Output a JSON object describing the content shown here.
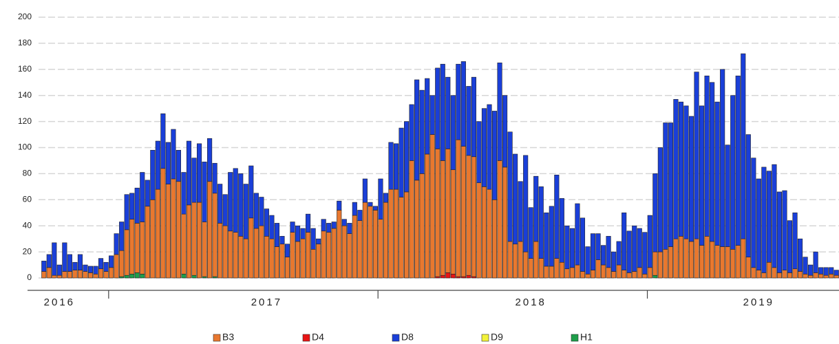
{
  "chart_data": {
    "type": "bar",
    "stacked": true,
    "grid": true,
    "legend": "bottom",
    "ylim": [
      0,
      200
    ],
    "yticks": [
      0,
      20,
      40,
      60,
      80,
      100,
      120,
      140,
      160,
      180,
      200
    ],
    "categories": [
      null,
      null,
      null,
      "2016",
      null,
      null,
      null,
      null,
      null,
      null,
      null,
      null,
      null,
      null,
      null,
      null,
      null,
      null,
      null,
      null,
      null,
      null,
      null,
      null,
      null,
      null,
      null,
      null,
      null,
      null,
      null,
      null,
      null,
      null,
      null,
      null,
      null,
      null,
      null,
      null,
      null,
      null,
      null,
      "2017",
      null,
      null,
      null,
      null,
      null,
      null,
      null,
      null,
      null,
      null,
      null,
      null,
      null,
      null,
      null,
      null,
      null,
      null,
      null,
      null,
      null,
      null,
      null,
      null,
      null,
      null,
      null,
      null,
      null,
      null,
      null,
      null,
      null,
      null,
      null,
      null,
      null,
      null,
      null,
      null,
      null,
      null,
      null,
      null,
      null,
      null,
      null,
      null,
      null,
      null,
      "2018",
      null,
      null,
      null,
      null,
      null,
      null,
      null,
      null,
      null,
      null,
      null,
      null,
      null,
      null,
      null,
      null,
      null,
      null,
      null,
      null,
      null,
      null,
      null,
      null,
      null,
      null,
      null,
      null,
      null,
      null,
      null,
      null,
      null,
      null,
      null,
      null,
      null,
      null,
      null,
      null,
      null,
      null,
      null,
      "2019",
      null,
      null,
      null,
      null,
      null,
      null,
      null,
      null,
      null,
      null,
      null,
      null,
      null,
      null,
      null
    ],
    "series": [
      {
        "name": "B3",
        "color": "#e8782f",
        "values": [
          5,
          8,
          2,
          2,
          5,
          5,
          6,
          6,
          5,
          4,
          3,
          7,
          5,
          8,
          18,
          20,
          35,
          42,
          38,
          40,
          55,
          60,
          68,
          84,
          72,
          76,
          74,
          46,
          56,
          56,
          58,
          42,
          74,
          64,
          42,
          40,
          36,
          35,
          32,
          30,
          46,
          38,
          40,
          32,
          30,
          24,
          26,
          16,
          35,
          28,
          30,
          35,
          22,
          26,
          36,
          35,
          38,
          52,
          40,
          34,
          48,
          44,
          58,
          55,
          52,
          45,
          58,
          68,
          68,
          62,
          66,
          90,
          75,
          80,
          95,
          110,
          98,
          88,
          95,
          80,
          105,
          100,
          92,
          92,
          73,
          70,
          68,
          60,
          90,
          85,
          28,
          26,
          28,
          20,
          15,
          28,
          15,
          9,
          9,
          15,
          12,
          7,
          8,
          10,
          5,
          3,
          6,
          14,
          10,
          8,
          5,
          10,
          6,
          4,
          5,
          8,
          3,
          8,
          18,
          20,
          22,
          24,
          30,
          32,
          30,
          28,
          30,
          25,
          32,
          28,
          25,
          24,
          24,
          22,
          25,
          30,
          16,
          8,
          6,
          4,
          12,
          8,
          4,
          6,
          4,
          7,
          5,
          3,
          2,
          4,
          3,
          2,
          3,
          2
        ]
      },
      {
        "name": "D4",
        "color": "#e81414",
        "values": [
          0,
          0,
          0,
          0,
          0,
          0,
          0,
          0,
          0,
          0,
          0,
          0,
          0,
          0,
          0,
          0,
          0,
          0,
          0,
          0,
          0,
          0,
          0,
          0,
          0,
          0,
          0,
          0,
          0,
          0,
          0,
          0,
          0,
          0,
          0,
          0,
          0,
          0,
          0,
          0,
          0,
          0,
          0,
          0,
          0,
          0,
          0,
          0,
          0,
          0,
          0,
          0,
          0,
          0,
          0,
          0,
          0,
          0,
          0,
          0,
          0,
          0,
          0,
          0,
          0,
          0,
          0,
          0,
          0,
          0,
          0,
          0,
          0,
          0,
          0,
          0,
          1,
          2,
          4,
          3,
          1,
          1,
          2,
          1,
          0,
          0,
          0,
          0,
          0,
          0,
          0,
          0,
          0,
          0,
          0,
          0,
          0,
          0,
          0,
          0,
          0,
          0,
          0,
          0,
          0,
          0,
          0,
          0,
          0,
          0,
          0,
          0,
          0,
          0,
          0,
          0,
          0,
          0,
          0,
          0,
          0,
          0,
          0,
          0,
          0,
          0,
          0,
          0,
          0,
          0,
          0,
          0,
          0,
          0,
          0,
          0,
          0,
          0,
          0,
          0,
          0,
          0,
          0,
          0,
          0,
          0,
          0,
          0,
          0,
          0,
          0,
          0,
          0,
          0
        ]
      },
      {
        "name": "D8",
        "color": "#1a3fd8",
        "values": [
          8,
          10,
          25,
          8,
          22,
          13,
          6,
          12,
          5,
          5,
          6,
          8,
          7,
          9,
          16,
          22,
          27,
          20,
          27,
          38,
          20,
          38,
          37,
          42,
          32,
          38,
          24,
          32,
          49,
          34,
          45,
          46,
          33,
          23,
          30,
          24,
          45,
          49,
          48,
          42,
          40,
          27,
          22,
          21,
          18,
          18,
          6,
          10,
          8,
          12,
          8,
          14,
          16,
          4,
          9,
          7,
          5,
          7,
          5,
          8,
          10,
          8,
          18,
          3,
          3,
          31,
          7,
          36,
          35,
          53,
          54,
          43,
          77,
          64,
          58,
          30,
          62,
          74,
          55,
          57,
          58,
          65,
          53,
          61,
          47,
          60,
          65,
          68,
          75,
          55,
          84,
          69,
          46,
          74,
          39,
          50,
          55,
          41,
          46,
          64,
          49,
          33,
          30,
          47,
          41,
          21,
          28,
          20,
          15,
          24,
          15,
          18,
          44,
          32,
          35,
          30,
          32,
          40,
          60,
          80,
          97,
          95,
          107,
          103,
          102,
          96,
          128,
          107,
          123,
          122,
          110,
          136,
          78,
          118,
          130,
          142,
          94,
          84,
          70,
          81,
          70,
          79,
          62,
          61,
          40,
          43,
          25,
          13,
          8,
          16,
          5,
          6,
          5,
          4
        ]
      },
      {
        "name": "D9",
        "color": "#f2f23a",
        "values": [
          0,
          0,
          0,
          0,
          0,
          0,
          0,
          0,
          0,
          0,
          0,
          0,
          0,
          0,
          0,
          0,
          0,
          0,
          0,
          0,
          0,
          0,
          0,
          0,
          0,
          0,
          0,
          0,
          0,
          0,
          0,
          0,
          0,
          0,
          0,
          0,
          0,
          0,
          0,
          0,
          0,
          0,
          0,
          0,
          0,
          0,
          0,
          0,
          0,
          0,
          0,
          0,
          0,
          0,
          0,
          0,
          0,
          0,
          0,
          0,
          0,
          0,
          0,
          0,
          0,
          0,
          0,
          0,
          0,
          0,
          0,
          0,
          0,
          0,
          0,
          0,
          0,
          0,
          0,
          0,
          0,
          0,
          0,
          0,
          0,
          0,
          0,
          0,
          0,
          0,
          0,
          0,
          0,
          0,
          0,
          0,
          0,
          0,
          0,
          0,
          0,
          0,
          0,
          0,
          0,
          0,
          0,
          0,
          0,
          0,
          0,
          0,
          0,
          0,
          0,
          0,
          0,
          0,
          0,
          0,
          0,
          0,
          0,
          0,
          0,
          0,
          0,
          0,
          0,
          0,
          0,
          0,
          0,
          0,
          0,
          0,
          0,
          0,
          0,
          0,
          0,
          0,
          0,
          0,
          0,
          0,
          0,
          0,
          0,
          0,
          0,
          0,
          0,
          0
        ]
      },
      {
        "name": "H1",
        "color": "#1e9e4a",
        "values": [
          0,
          0,
          0,
          0,
          0,
          0,
          0,
          0,
          0,
          0,
          0,
          0,
          0,
          0,
          0,
          1,
          2,
          3,
          4,
          3,
          0,
          0,
          0,
          0,
          0,
          0,
          0,
          3,
          0,
          2,
          0,
          1,
          0,
          1,
          0,
          0,
          0,
          0,
          0,
          0,
          0,
          0,
          0,
          0,
          0,
          0,
          0,
          0,
          0,
          0,
          0,
          0,
          0,
          0,
          0,
          0,
          0,
          0,
          0,
          0,
          0,
          0,
          0,
          0,
          0,
          0,
          0,
          0,
          0,
          0,
          0,
          0,
          0,
          0,
          0,
          0,
          0,
          0,
          0,
          0,
          0,
          0,
          0,
          0,
          0,
          0,
          0,
          0,
          0,
          0,
          0,
          0,
          0,
          0,
          0,
          0,
          0,
          0,
          0,
          0,
          0,
          0,
          0,
          0,
          0,
          0,
          0,
          0,
          0,
          0,
          0,
          0,
          0,
          0,
          0,
          0,
          0,
          0,
          2,
          0,
          0,
          0,
          0,
          0,
          0,
          0,
          0,
          0,
          0,
          0,
          0,
          0,
          0,
          0,
          0,
          0,
          0,
          0,
          0,
          0,
          0,
          0,
          0,
          0,
          0,
          0,
          0,
          0,
          0,
          0,
          0,
          0,
          0,
          0
        ]
      }
    ]
  }
}
